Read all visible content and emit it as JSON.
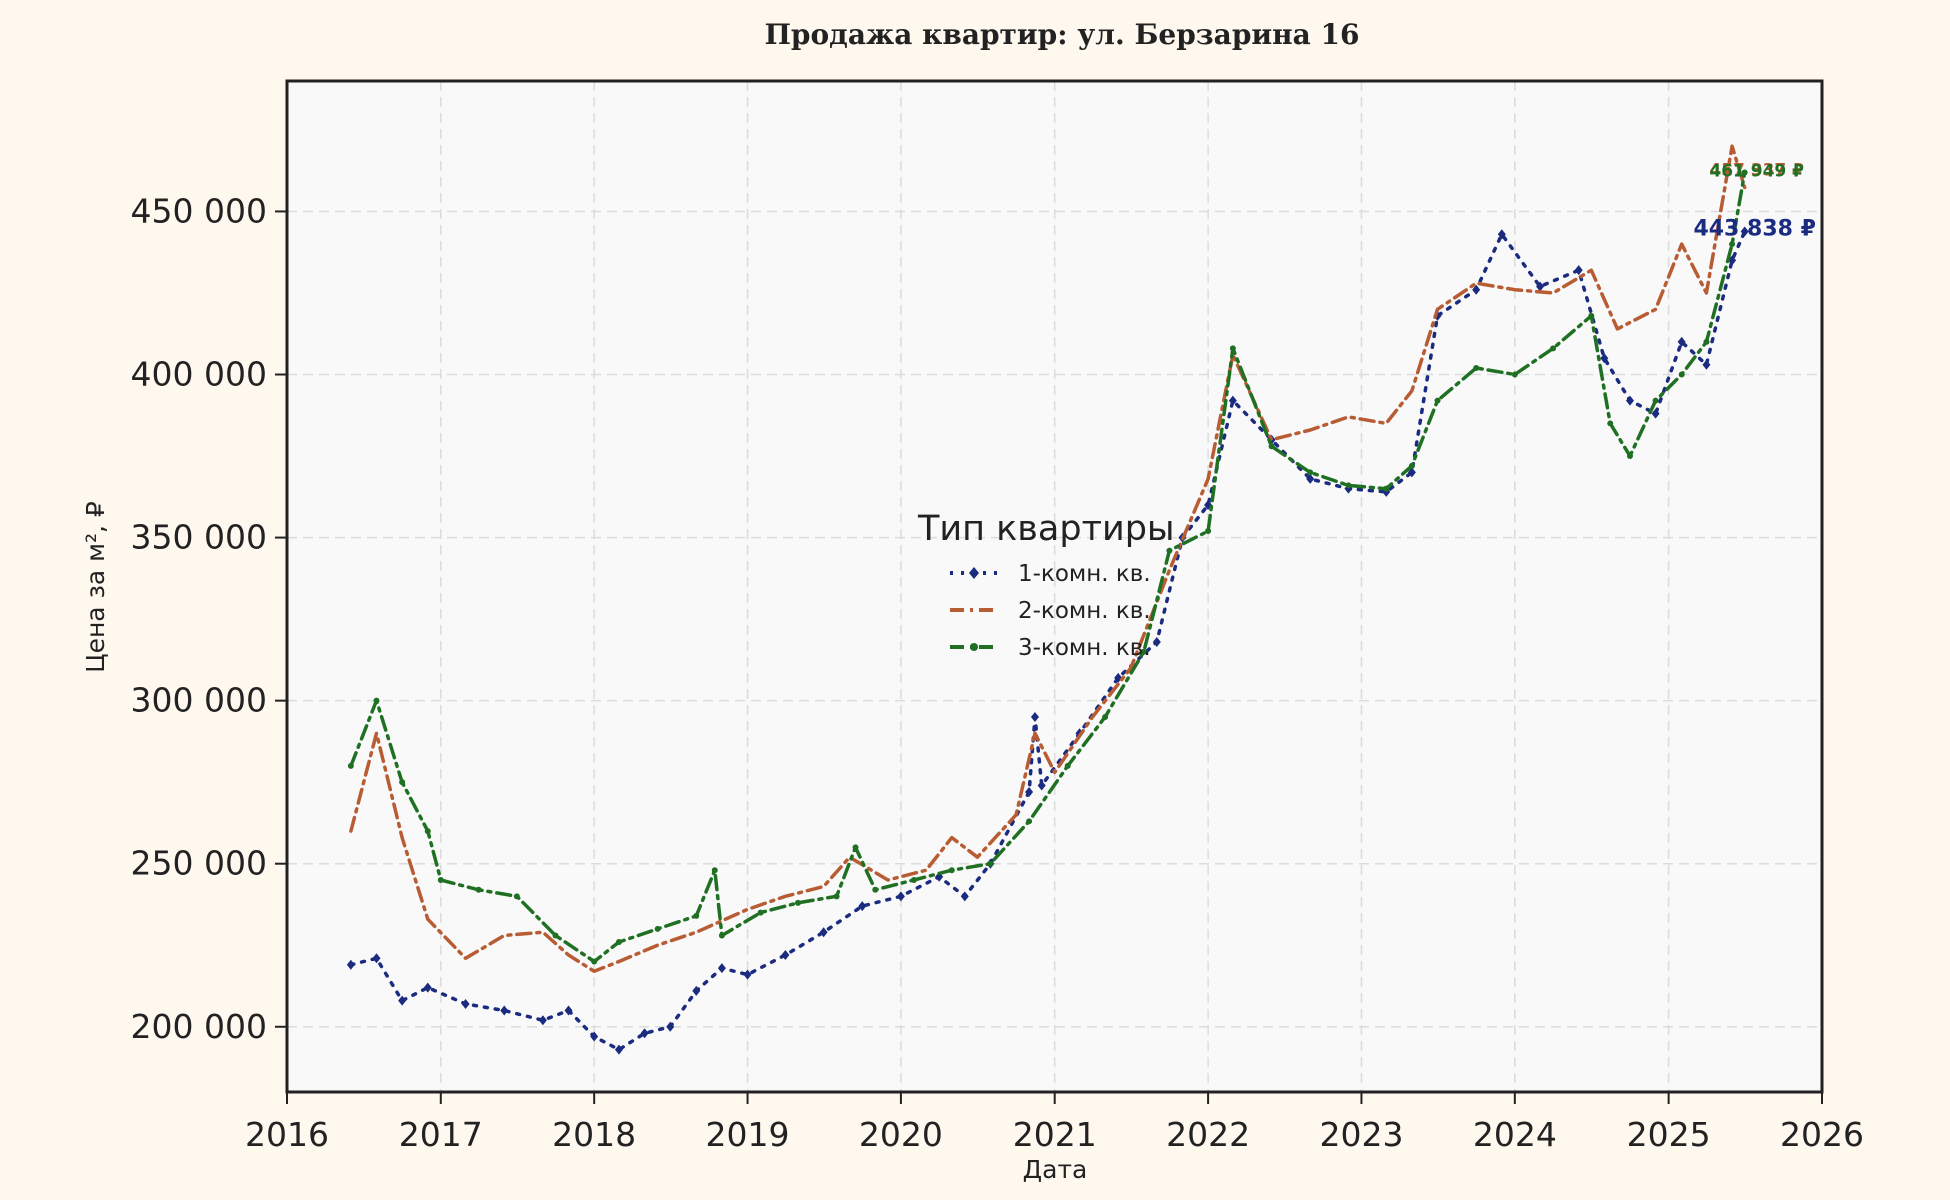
{
  "chart_data": {
    "type": "line",
    "title": "Продажа квартир: ул. Берзарина 16",
    "xlabel": "Дата",
    "ylabel": "Цена за м², ₽",
    "xlim": [
      "2016-01-01",
      "2026-01-01"
    ],
    "ylim": [
      180000,
      490000
    ],
    "x_ticks": [
      "2016",
      "2017",
      "2018",
      "2019",
      "2020",
      "2021",
      "2022",
      "2023",
      "2024",
      "2025",
      "2026"
    ],
    "y_ticks": [
      200000,
      250000,
      300000,
      350000,
      400000,
      450000
    ],
    "y_tick_labels": [
      "200 000",
      "250 000",
      "300 000",
      "350 000",
      "400 000",
      "450 000"
    ],
    "grid": true,
    "legend": {
      "title": "Тип квартиры",
      "position": "center"
    },
    "series": [
      {
        "name": "1-комн. кв.",
        "color": "#1a2b80",
        "dash": "dotted",
        "marker": "diamond",
        "end_label": "443 838 ₽",
        "points": [
          [
            "2016-06-01",
            219000
          ],
          [
            "2016-08-01",
            221000
          ],
          [
            "2016-10-01",
            208000
          ],
          [
            "2016-12-01",
            212000
          ],
          [
            "2017-03-01",
            207000
          ],
          [
            "2017-06-01",
            205000
          ],
          [
            "2017-09-01",
            202000
          ],
          [
            "2017-11-01",
            205000
          ],
          [
            "2018-01-01",
            197000
          ],
          [
            "2018-03-01",
            193000
          ],
          [
            "2018-05-01",
            198000
          ],
          [
            "2018-07-01",
            200000
          ],
          [
            "2018-09-01",
            211000
          ],
          [
            "2018-11-01",
            218000
          ],
          [
            "2019-01-01",
            216000
          ],
          [
            "2019-04-01",
            222000
          ],
          [
            "2019-07-01",
            229000
          ],
          [
            "2019-10-01",
            237000
          ],
          [
            "2020-01-01",
            240000
          ],
          [
            "2020-04-01",
            246000
          ],
          [
            "2020-06-01",
            240000
          ],
          [
            "2020-08-01",
            250000
          ],
          [
            "2020-11-01",
            272000
          ],
          [
            "2020-11-15",
            295000
          ],
          [
            "2020-12-01",
            274000
          ],
          [
            "2021-03-01",
            290000
          ],
          [
            "2021-06-01",
            307000
          ],
          [
            "2021-09-01",
            318000
          ],
          [
            "2021-11-01",
            350000
          ],
          [
            "2022-01-01",
            360000
          ],
          [
            "2022-03-01",
            392000
          ],
          [
            "2022-06-01",
            380000
          ],
          [
            "2022-09-01",
            368000
          ],
          [
            "2022-12-01",
            365000
          ],
          [
            "2023-03-01",
            364000
          ],
          [
            "2023-05-01",
            370000
          ],
          [
            "2023-07-01",
            418000
          ],
          [
            "2023-10-01",
            426000
          ],
          [
            "2023-12-01",
            443000
          ],
          [
            "2024-03-01",
            427000
          ],
          [
            "2024-06-01",
            432000
          ],
          [
            "2024-08-01",
            405000
          ],
          [
            "2024-10-01",
            392000
          ],
          [
            "2024-12-01",
            388000
          ],
          [
            "2025-02-01",
            410000
          ],
          [
            "2025-04-01",
            403000
          ],
          [
            "2025-06-01",
            435000
          ],
          [
            "2025-07-01",
            443838
          ]
        ]
      },
      {
        "name": "2-комн. кв.",
        "color": "#b85c34",
        "dash": "dashdot",
        "marker": "none",
        "end_label": "457 337 ₽",
        "points": [
          [
            "2016-06-01",
            260000
          ],
          [
            "2016-08-01",
            290000
          ],
          [
            "2016-10-01",
            258000
          ],
          [
            "2016-12-01",
            233000
          ],
          [
            "2017-03-01",
            221000
          ],
          [
            "2017-06-01",
            228000
          ],
          [
            "2017-09-01",
            229000
          ],
          [
            "2017-11-01",
            222000
          ],
          [
            "2018-01-01",
            217000
          ],
          [
            "2018-03-01",
            220000
          ],
          [
            "2018-06-01",
            225000
          ],
          [
            "2018-09-01",
            229000
          ],
          [
            "2019-01-01",
            236000
          ],
          [
            "2019-04-01",
            240000
          ],
          [
            "2019-07-01",
            243000
          ],
          [
            "2019-09-01",
            252000
          ],
          [
            "2019-12-01",
            245000
          ],
          [
            "2020-03-01",
            248000
          ],
          [
            "2020-05-01",
            258000
          ],
          [
            "2020-07-01",
            252000
          ],
          [
            "2020-10-01",
            265000
          ],
          [
            "2020-11-15",
            290000
          ],
          [
            "2021-01-01",
            278000
          ],
          [
            "2021-04-01",
            295000
          ],
          [
            "2021-07-01",
            310000
          ],
          [
            "2021-10-01",
            340000
          ],
          [
            "2022-01-01",
            368000
          ],
          [
            "2022-03-01",
            406000
          ],
          [
            "2022-06-01",
            380000
          ],
          [
            "2022-09-01",
            383000
          ],
          [
            "2022-12-01",
            387000
          ],
          [
            "2023-03-01",
            385000
          ],
          [
            "2023-05-01",
            395000
          ],
          [
            "2023-07-01",
            420000
          ],
          [
            "2023-10-01",
            428000
          ],
          [
            "2024-01-01",
            426000
          ],
          [
            "2024-04-01",
            425000
          ],
          [
            "2024-07-01",
            432000
          ],
          [
            "2024-09-01",
            414000
          ],
          [
            "2024-12-01",
            420000
          ],
          [
            "2025-02-01",
            440000
          ],
          [
            "2025-04-01",
            425000
          ],
          [
            "2025-06-01",
            470000
          ],
          [
            "2025-07-01",
            457337
          ]
        ]
      },
      {
        "name": "3-комн. кв.",
        "color": "#1f7023",
        "dash": "dashdot",
        "marker": "dot",
        "end_label": "461 949 ₽",
        "points": [
          [
            "2016-06-01",
            280000
          ],
          [
            "2016-08-01",
            300000
          ],
          [
            "2016-10-01",
            275000
          ],
          [
            "2016-12-01",
            260000
          ],
          [
            "2017-01-01",
            245000
          ],
          [
            "2017-04-01",
            242000
          ],
          [
            "2017-07-01",
            240000
          ],
          [
            "2017-10-01",
            228000
          ],
          [
            "2018-01-01",
            220000
          ],
          [
            "2018-03-01",
            226000
          ],
          [
            "2018-06-01",
            230000
          ],
          [
            "2018-09-01",
            234000
          ],
          [
            "2018-10-15",
            248000
          ],
          [
            "2018-11-01",
            228000
          ],
          [
            "2019-02-01",
            235000
          ],
          [
            "2019-05-01",
            238000
          ],
          [
            "2019-08-01",
            240000
          ],
          [
            "2019-09-15",
            255000
          ],
          [
            "2019-11-01",
            242000
          ],
          [
            "2020-02-01",
            245000
          ],
          [
            "2020-05-01",
            248000
          ],
          [
            "2020-08-01",
            250000
          ],
          [
            "2020-11-01",
            263000
          ],
          [
            "2021-02-01",
            280000
          ],
          [
            "2021-05-01",
            295000
          ],
          [
            "2021-08-01",
            315000
          ],
          [
            "2021-10-01",
            346000
          ],
          [
            "2022-01-01",
            352000
          ],
          [
            "2022-03-01",
            408000
          ],
          [
            "2022-06-01",
            378000
          ],
          [
            "2022-09-01",
            370000
          ],
          [
            "2022-12-01",
            366000
          ],
          [
            "2023-03-01",
            365000
          ],
          [
            "2023-05-01",
            372000
          ],
          [
            "2023-07-01",
            392000
          ],
          [
            "2023-10-01",
            402000
          ],
          [
            "2024-01-01",
            400000
          ],
          [
            "2024-04-01",
            408000
          ],
          [
            "2024-07-01",
            418000
          ],
          [
            "2024-08-15",
            385000
          ],
          [
            "2024-10-01",
            375000
          ],
          [
            "2024-12-01",
            392000
          ],
          [
            "2025-02-01",
            400000
          ],
          [
            "2025-04-01",
            410000
          ],
          [
            "2025-06-01",
            440000
          ],
          [
            "2025-07-01",
            461949
          ]
        ]
      }
    ]
  }
}
